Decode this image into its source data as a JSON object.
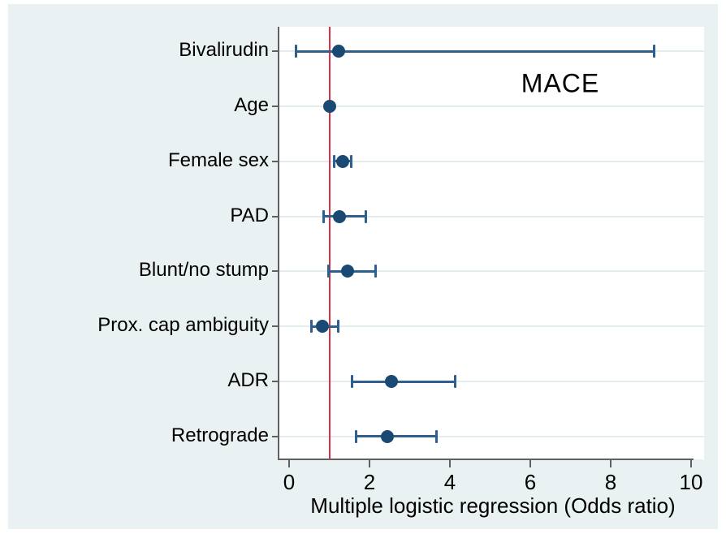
{
  "chart_data": {
    "type": "scatter",
    "subtype": "forest-plot-odds-ratios",
    "title": "",
    "annotation": "MACE",
    "xlabel": "Multiple logistic regression (Odds ratio)",
    "ylabel": "",
    "x_ticks": [
      0,
      2,
      4,
      6,
      8,
      10
    ],
    "xlim": [
      -0.26,
      10.32
    ],
    "grid": true,
    "legend": false,
    "reference_line": {
      "x": 1.0
    },
    "rows": [
      {
        "label": "Bivalirudin",
        "or": 1.23,
        "ci_low": 0.17,
        "ci_high": 9.09
      },
      {
        "label": "Age",
        "or": 1.0,
        "ci_low": 1.0,
        "ci_high": 1.0
      },
      {
        "label": "Female sex",
        "or": 1.33,
        "ci_low": 1.11,
        "ci_high": 1.56
      },
      {
        "label": "PAD",
        "or": 1.25,
        "ci_low": 0.84,
        "ci_high": 1.92
      },
      {
        "label": "Blunt/no stump",
        "or": 1.45,
        "ci_low": 0.96,
        "ci_high": 2.17
      },
      {
        "label": "Prox. cap ambiguity",
        "or": 0.82,
        "ci_low": 0.54,
        "ci_high": 1.23
      },
      {
        "label": "ADR",
        "or": 2.54,
        "ci_low": 1.56,
        "ci_high": 4.14
      },
      {
        "label": "Retrograde",
        "or": 2.45,
        "ci_low": 1.66,
        "ci_high": 3.68
      }
    ],
    "colors": {
      "outer_background": "#eaf1f3",
      "plot_background": "#ffffff",
      "gridline": "#e3edf0",
      "axis": "#606060",
      "reference_line": "#dc3048",
      "ci_line": "#2e608f",
      "marker": "#1a4a74",
      "text": "#000000"
    }
  }
}
